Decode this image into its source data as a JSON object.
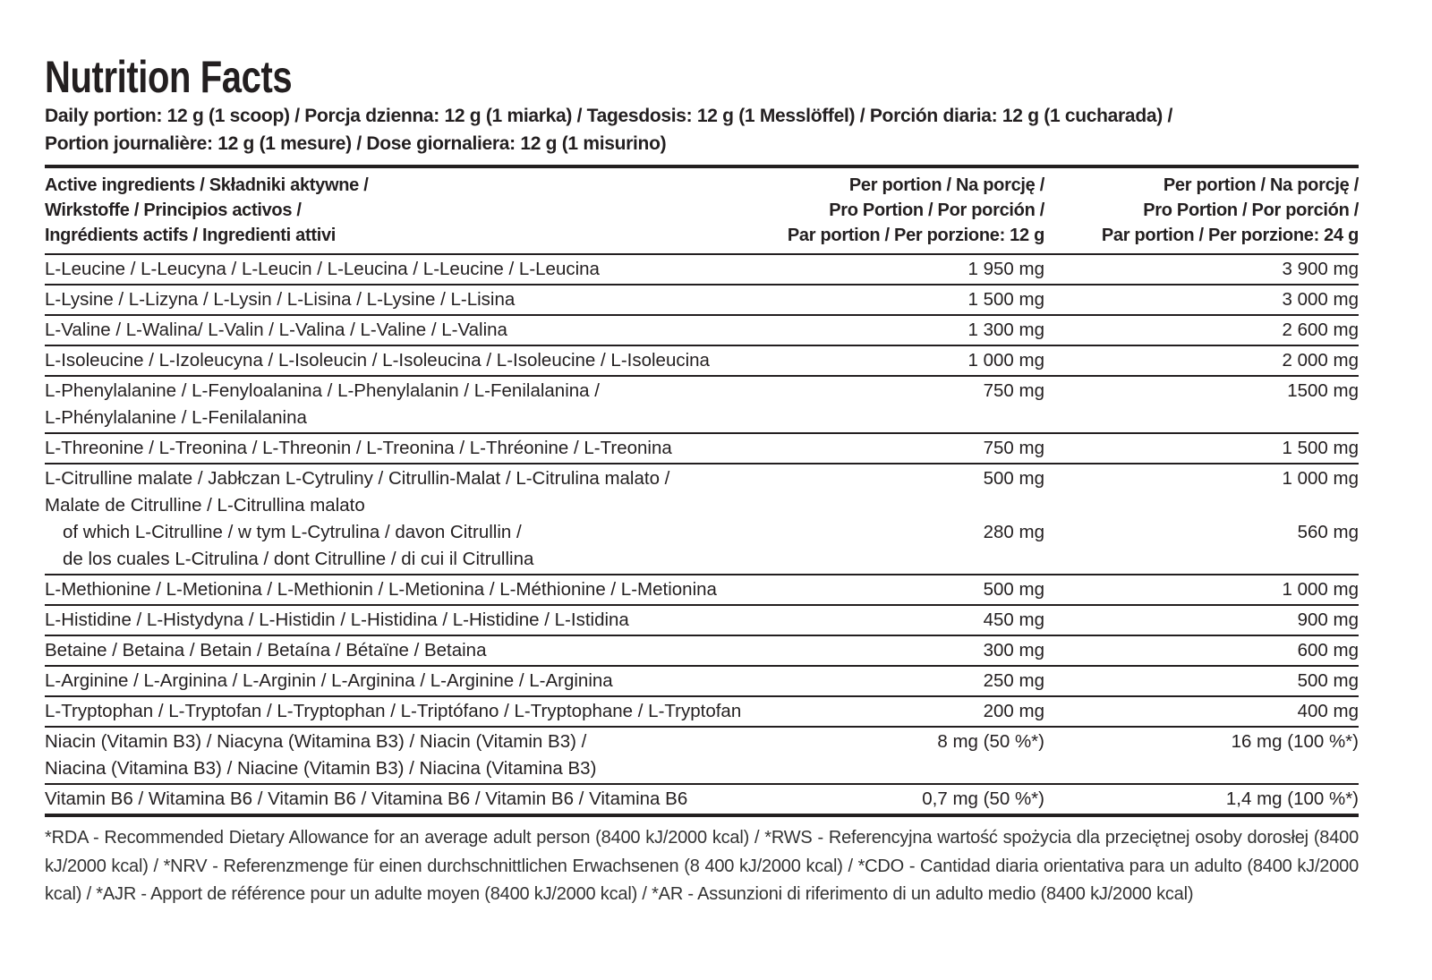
{
  "title": "Nutrition Facts",
  "subtitle_lines": [
    "Daily portion: 12 g (1 scoop) / Porcja dzienna: 12 g (1 miarka) / Tagesdosis: 12 g (1 Messlöffel) / Porción diaria: 12 g (1 cucharada) /",
    "Portion journalière: 12 g (1 mesure) / Dose giornaliera: 12 g (1 misurino)"
  ],
  "headers": {
    "name": [
      "Active ingredients / Składniki aktywne /",
      "Wirkstoffe / Principios activos /",
      "Ingrédients actifs / Ingredienti attivi"
    ],
    "per12": [
      "Per portion / Na porcję /",
      "Pro Portion / Por porción /",
      "Par portion / Per porzione: 12 g"
    ],
    "per24": [
      "Per portion / Na porcję /",
      "Pro Portion / Por porción /",
      "Par portion / Per porzione: 24 g"
    ]
  },
  "rows": [
    {
      "lines": [
        {
          "name": "L-Leucine / L-Leucyna / L-Leucin / L-Leucina / L-Leucine / L-Leucina",
          "v1": "1 950 mg",
          "v2": "3 900 mg"
        }
      ]
    },
    {
      "lines": [
        {
          "name": "L-Lysine / L-Lizyna / L-Lysin / L-Lisina / L-Lysine / L-Lisina",
          "v1": "1 500 mg",
          "v2": "3 000 mg"
        }
      ]
    },
    {
      "lines": [
        {
          "name": "L-Valine / L-Walina/ L-Valin / L-Valina / L-Valine / L-Valina",
          "v1": "1 300 mg",
          "v2": "2 600 mg"
        }
      ]
    },
    {
      "lines": [
        {
          "name": "L-Isoleucine / L-Izoleucyna / L-Isoleucin / L-Isoleucina / L-Isoleucine / L-Isoleucina",
          "v1": "1 000 mg",
          "v2": "2 000 mg"
        }
      ]
    },
    {
      "lines": [
        {
          "name": "L-Phenylalanine / L-Fenyloalanina / L-Phenylalanin / L-Fenilalanina /",
          "v1": "750 mg",
          "v2": "1500 mg"
        },
        {
          "name": "L-Phénylalanine / L-Fenilalanina",
          "v1": "",
          "v2": ""
        }
      ]
    },
    {
      "lines": [
        {
          "name": "L-Threonine / L-Treonina / L-Threonin / L-Treonina / L-Thréonine / L-Treonina",
          "v1": "750 mg",
          "v2": "1 500 mg"
        }
      ]
    },
    {
      "lines": [
        {
          "name": "L-Citrulline malate / Jabłczan L-Cytruliny / Citrullin-Malat / L-Citrulina malato /",
          "v1": "500 mg",
          "v2": "1 000 mg"
        },
        {
          "name": "Malate de Citrulline / L-Citrullina malato",
          "v1": "",
          "v2": ""
        },
        {
          "name": "of which L-Citrulline / w tym L-Cytrulina / davon Citrullin /",
          "v1": "280 mg",
          "v2": "560 mg",
          "indent": true
        },
        {
          "name": "de los cuales L-Citrulina / dont Citrulline / di cui il Citrullina",
          "v1": "",
          "v2": "",
          "indent": true
        }
      ]
    },
    {
      "lines": [
        {
          "name": "L-Methionine / L-Metionina / L-Methionin / L-Metionina / L-Méthionine / L-Metionina",
          "v1": "500 mg",
          "v2": "1 000 mg"
        }
      ]
    },
    {
      "lines": [
        {
          "name": "L-Histidine / L-Histydyna / L-Histidin / L-Histidina / L-Histidine / L-Istidina",
          "v1": "450 mg",
          "v2": "900 mg"
        }
      ]
    },
    {
      "lines": [
        {
          "name": "Betaine / Betaina / Betain / Betaína / Bétaïne / Betaina",
          "v1": "300 mg",
          "v2": "600 mg"
        }
      ]
    },
    {
      "lines": [
        {
          "name": "L-Arginine / L-Arginina / L-Arginin / L-Arginina / L-Arginine / L-Arginina",
          "v1": "250 mg",
          "v2": "500 mg"
        }
      ]
    },
    {
      "lines": [
        {
          "name": "L-Tryptophan / L-Tryptofan / L-Tryptophan / L-Triptófano / L-Tryptophane / L-Tryptofan",
          "v1": "200 mg",
          "v2": "400 mg"
        }
      ]
    },
    {
      "lines": [
        {
          "name": "Niacin (Vitamin B3) / Niacyna (Witamina B3) / Niacin (Vitamin B3) /",
          "v1": "8 mg (50 %*)",
          "v2": "16 mg (100 %*)"
        },
        {
          "name": "Niacina (Vitamina B3) / Niacine (Vitamin B3) / Niacina (Vitamina B3)",
          "v1": "",
          "v2": ""
        }
      ]
    },
    {
      "lines": [
        {
          "name": "Vitamin B6 / Witamina B6 / Vitamin B6 / Vitamina B6 / Vitamin B6 / Vitamina B6",
          "v1": "0,7 mg (50 %*)",
          "v2": "1,4 mg (100 %*)"
        }
      ]
    }
  ],
  "footnote": "*RDA - Recommended Dietary Allowance for an average adult person (8400 kJ/2000 kcal) / *RWS - Referencyjna wartość spożycia dla przeciętnej osoby dorosłej (8400 kJ/2000 kcal) / *NRV - Referenzmenge für einen durchschnittlichen Erwachsenen (8 400 kJ/2000 kcal) / *CDO - Cantidad diaria orientativa para un adulto (8400 kJ/2000 kcal) / *AJR - Apport de référence pour un adulte moyen (8400 kJ/2000 kcal) / *AR - Assunzioni di riferimento di un adulto medio (8400 kJ/2000 kcal)"
}
